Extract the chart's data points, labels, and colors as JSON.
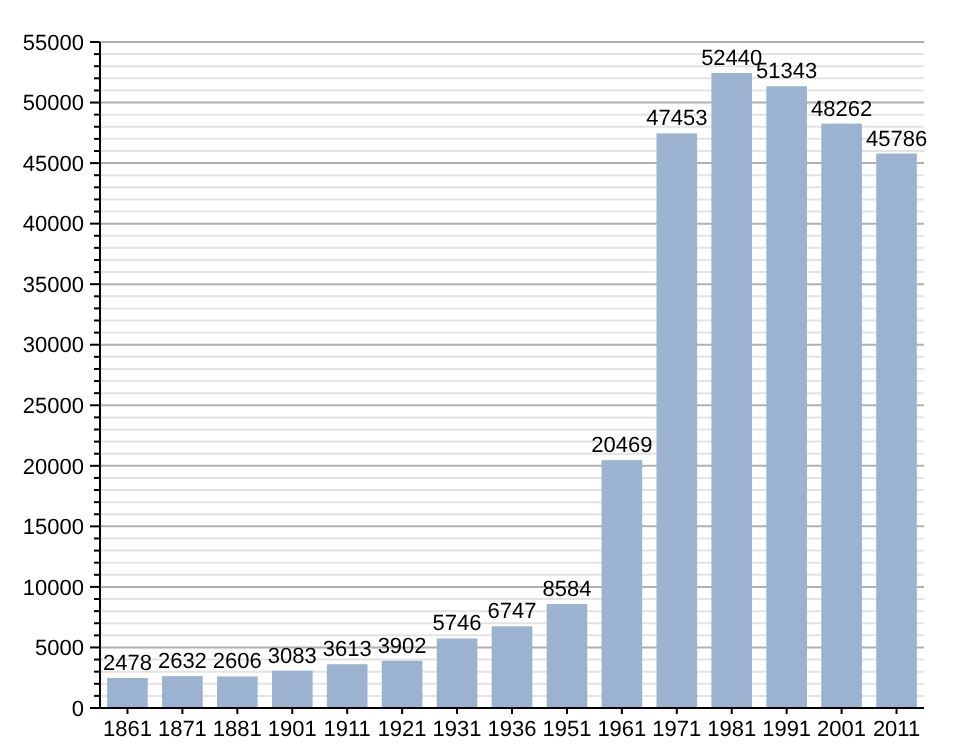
{
  "chart_data": {
    "type": "bar",
    "categories": [
      "1861",
      "1871",
      "1881",
      "1901",
      "1911",
      "1921",
      "1931",
      "1936",
      "1951",
      "1961",
      "1971",
      "1981",
      "1991",
      "2001",
      "2011"
    ],
    "values": [
      2478,
      2632,
      2606,
      3083,
      3613,
      3902,
      5746,
      6747,
      8584,
      20469,
      47453,
      52440,
      51343,
      48262,
      45786
    ],
    "color": "#9bb3d0",
    "data_labels": true,
    "grid": "y",
    "ylim": [
      0,
      55000
    ],
    "yticks": [
      0,
      {
        "value": 1000,
        "label": null
      },
      {
        "value": 2000,
        "label": null
      },
      {
        "value": 3000,
        "label": null
      },
      {
        "value": 4000,
        "label": null
      },
      5000,
      {
        "value": 6000,
        "label": null
      },
      {
        "value": 7000,
        "label": null
      },
      {
        "value": 8000,
        "label": null
      },
      {
        "value": 9000,
        "label": null
      },
      10000,
      {
        "value": 11000,
        "label": null
      },
      {
        "value": 12000,
        "label": null
      },
      {
        "value": 13000,
        "label": null
      },
      {
        "value": 14000,
        "label": null
      },
      15000,
      {
        "value": 16000,
        "label": null
      },
      {
        "value": 17000,
        "label": null
      },
      {
        "value": 18000,
        "label": null
      },
      {
        "value": 19000,
        "label": null
      },
      20000,
      {
        "value": 21000,
        "label": null
      },
      {
        "value": 22000,
        "label": null
      },
      {
        "value": 23000,
        "label": null
      },
      {
        "value": 24000,
        "label": null
      },
      25000,
      {
        "value": 26000,
        "label": null
      },
      {
        "value": 27000,
        "label": null
      },
      {
        "value": 28000,
        "label": null
      },
      {
        "value": 29000,
        "label": null
      },
      30000,
      {
        "value": 31000,
        "label": null
      },
      {
        "value": 32000,
        "label": null
      },
      {
        "value": 33000,
        "label": null
      },
      {
        "value": 34000,
        "label": null
      },
      35000,
      {
        "value": 36000,
        "label": null
      },
      {
        "value": 37000,
        "label": null
      },
      {
        "value": 38000,
        "label": null
      },
      {
        "value": 39000,
        "label": null
      },
      40000,
      {
        "value": 41000,
        "label": null
      },
      {
        "value": 42000,
        "label": null
      },
      {
        "value": 43000,
        "label": null
      },
      {
        "value": 44000,
        "label": null
      },
      45000,
      {
        "value": 46000,
        "label": null
      },
      {
        "value": 47000,
        "label": null
      },
      {
        "value": 48000,
        "label": null
      },
      {
        "value": 49000,
        "label": null
      },
      50000,
      {
        "value": 51000,
        "label": null
      },
      {
        "value": 52000,
        "label": null
      },
      {
        "value": 53000,
        "label": null
      },
      {
        "value": 54000,
        "label": null
      },
      55000
    ]
  }
}
